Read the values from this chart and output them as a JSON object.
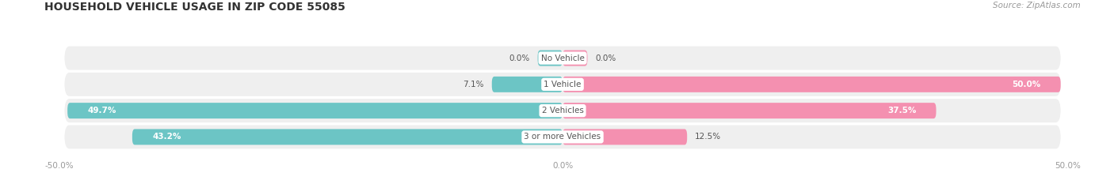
{
  "title": "HOUSEHOLD VEHICLE USAGE IN ZIP CODE 55085",
  "source": "Source: ZipAtlas.com",
  "categories": [
    "No Vehicle",
    "1 Vehicle",
    "2 Vehicles",
    "3 or more Vehicles"
  ],
  "owner_values": [
    0.0,
    7.1,
    49.7,
    43.2
  ],
  "renter_values": [
    0.0,
    50.0,
    37.5,
    12.5
  ],
  "owner_color": "#6cc5c5",
  "renter_color": "#f490b0",
  "bar_bg_color": "#efefef",
  "title_fontsize": 10,
  "source_fontsize": 7.5,
  "label_fontsize": 7.5,
  "tick_fontsize": 7.5,
  "background_color": "#ffffff"
}
